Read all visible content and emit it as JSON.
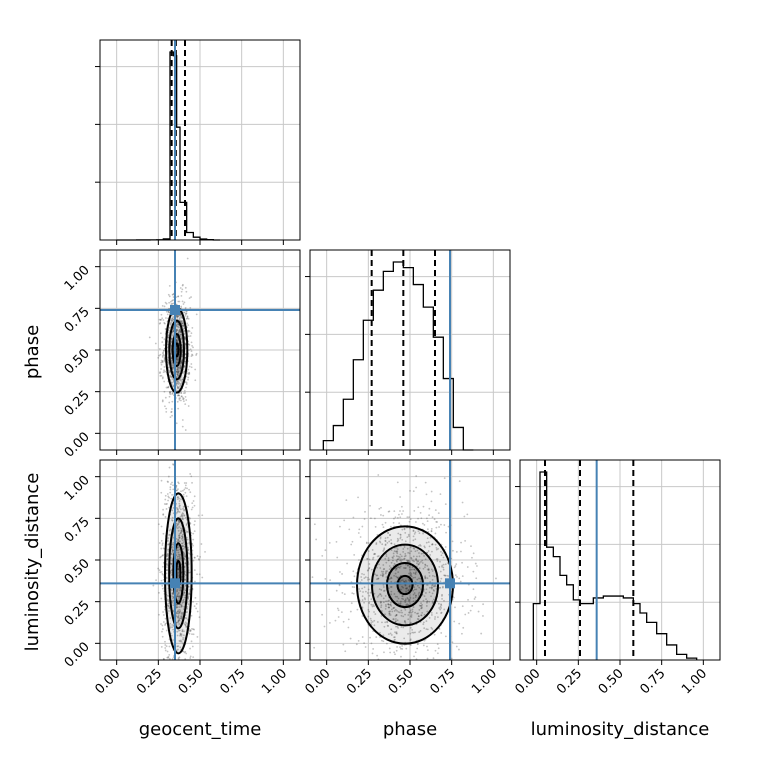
{
  "chart_data": {
    "type": "corner",
    "parameters": [
      "geocent_time",
      "phase",
      "luminosity_distance"
    ],
    "axis_ticks": [
      "0.00",
      "0.25",
      "0.50",
      "0.75",
      "1.00"
    ],
    "axis_range": [
      -0.1,
      1.1
    ],
    "truths": {
      "geocent_time": 0.35,
      "phase": 0.74,
      "luminosity_distance": 0.36
    },
    "grid": true,
    "colors": {
      "truth": "#4682b4",
      "hist": "#000000",
      "grid": "#c8c8c8",
      "points": "#555555"
    },
    "marginals": [
      {
        "parameter": "geocent_time",
        "quantiles": [
          0.33,
          0.355,
          0.41
        ],
        "bin_edges": [
          0.0,
          0.04,
          0.08,
          0.12,
          0.16,
          0.2,
          0.24,
          0.28,
          0.32,
          0.34,
          0.36,
          0.38,
          0.42,
          0.46,
          0.5,
          0.54,
          0.58,
          0.62
        ],
        "counts": [
          0.0,
          0.0,
          0.01,
          0.02,
          0.03,
          0.05,
          0.1,
          0.6,
          100.0,
          98.0,
          60.0,
          20.0,
          4.0,
          1.5,
          0.5,
          0.2,
          0.0
        ]
      },
      {
        "parameter": "phase",
        "quantiles": [
          0.27,
          0.46,
          0.65
        ],
        "bin_edges": [
          -0.02,
          0.04,
          0.1,
          0.16,
          0.22,
          0.28,
          0.34,
          0.4,
          0.46,
          0.52,
          0.58,
          0.64,
          0.7,
          0.76,
          0.82,
          0.88
        ],
        "counts": [
          0.05,
          0.13,
          0.27,
          0.48,
          0.69,
          0.85,
          0.95,
          1.0,
          0.97,
          0.88,
          0.76,
          0.6,
          0.38,
          0.12,
          0.0
        ]
      },
      {
        "parameter": "luminosity_distance",
        "quantiles": [
          0.05,
          0.26,
          0.58
        ],
        "bin_edges": [
          -0.02,
          0.02,
          0.06,
          0.1,
          0.14,
          0.18,
          0.22,
          0.26,
          0.3,
          0.34,
          0.4,
          0.46,
          0.52,
          0.58,
          0.62,
          0.66,
          0.72,
          0.78,
          0.84,
          0.9,
          0.96
        ],
        "counts": [
          0.3,
          1.0,
          0.6,
          0.55,
          0.45,
          0.4,
          0.32,
          0.3,
          0.3,
          0.33,
          0.34,
          0.34,
          0.33,
          0.3,
          0.25,
          0.2,
          0.14,
          0.08,
          0.03,
          0.01
        ]
      }
    ],
    "pair_plots": [
      {
        "x": "geocent_time",
        "y": "phase",
        "point_center": [
          0.36,
          0.5
        ],
        "point_spread": [
          0.04,
          0.16
        ]
      },
      {
        "x": "geocent_time",
        "y": "luminosity_distance",
        "point_center": [
          0.37,
          0.42
        ],
        "point_spread": [
          0.05,
          0.3
        ]
      },
      {
        "x": "phase",
        "y": "luminosity_distance",
        "point_center": [
          0.47,
          0.35
        ],
        "point_spread": [
          0.18,
          0.22
        ]
      }
    ]
  }
}
